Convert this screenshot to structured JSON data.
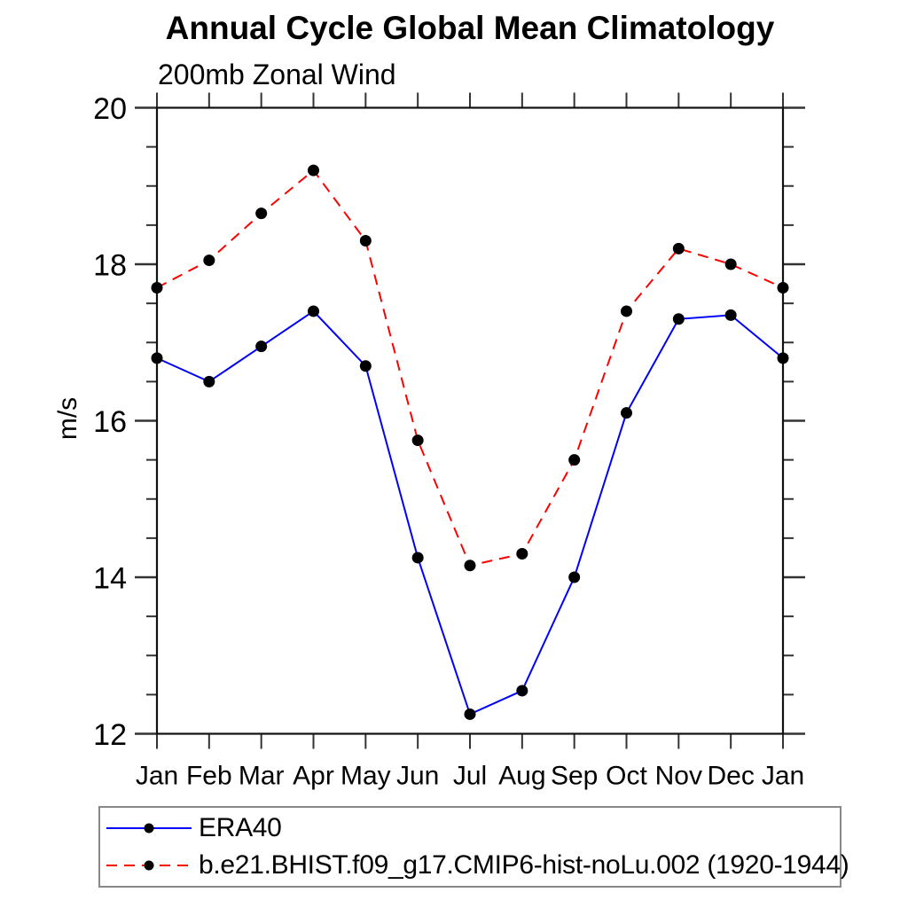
{
  "chart_data": {
    "type": "line",
    "title": "Annual Cycle Global Mean Climatology",
    "subtitle": "200mb Zonal Wind",
    "ylabel": "m/s",
    "ylim": [
      12,
      20
    ],
    "ytick_major": [
      12,
      14,
      16,
      18,
      20
    ],
    "ytick_minor_step": 0.5,
    "grid": false,
    "legend_position": "bottom-left",
    "categories": [
      "Jan",
      "Feb",
      "Mar",
      "Apr",
      "May",
      "Jun",
      "Jul",
      "Aug",
      "Sep",
      "Oct",
      "Nov",
      "Dec",
      "Jan"
    ],
    "series": [
      {
        "name": "ERA40",
        "color": "#0000ff",
        "line_style": "solid",
        "marker": "filled-circle",
        "marker_color": "#000000",
        "values": [
          16.8,
          16.5,
          16.95,
          17.4,
          16.7,
          14.25,
          12.25,
          12.55,
          14.0,
          16.1,
          17.3,
          17.35,
          16.8
        ]
      },
      {
        "name": "b.e21.BHIST.f09_g17.CMIP6-hist-noLu.002 (1920-1944)",
        "color": "#ff0000",
        "line_style": "dashed",
        "marker": "filled-circle",
        "marker_color": "#000000",
        "values": [
          17.7,
          18.05,
          18.65,
          19.2,
          18.3,
          15.75,
          14.15,
          14.3,
          15.5,
          17.4,
          18.2,
          18.0,
          17.7
        ]
      }
    ]
  }
}
